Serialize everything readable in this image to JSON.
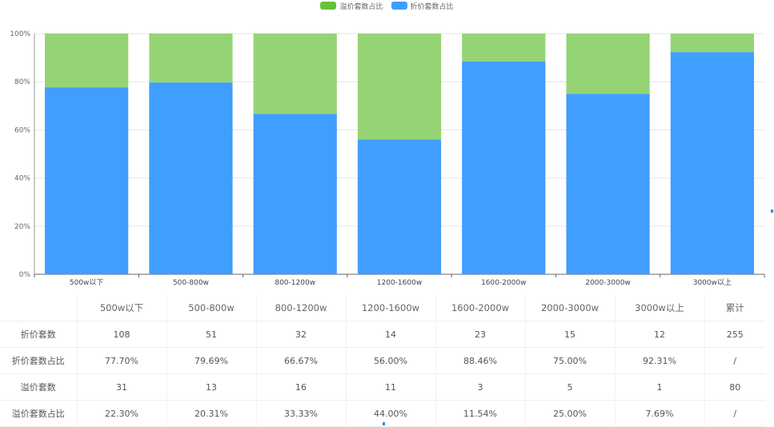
{
  "chart_data": {
    "type": "bar",
    "stacked": true,
    "percent": true,
    "categories": [
      "500w以下",
      "500-800w",
      "800-1200w",
      "1200-1600w",
      "1600-2000w",
      "2000-3000w",
      "3000w以上"
    ],
    "series": [
      {
        "name": "折价套数占比",
        "color": "#409EFF",
        "values": [
          77.7,
          79.69,
          66.67,
          56.0,
          88.46,
          75.0,
          92.31
        ]
      },
      {
        "name": "溢价套数占比",
        "color": "#95D475",
        "values": [
          22.3,
          20.31,
          33.33,
          44.0,
          11.54,
          25.0,
          7.69
        ]
      }
    ],
    "legend": [
      "溢价套数占比",
      "折价套数占比"
    ],
    "legend_colors": [
      "#67C23A",
      "#409EFF"
    ],
    "y_ticks": [
      "0%",
      "20%",
      "40%",
      "60%",
      "80%",
      "100%"
    ],
    "ylim": [
      0,
      100
    ],
    "legend_position": "top-center"
  },
  "table": {
    "headers": [
      "",
      "500w以下",
      "500-800w",
      "800-1200w",
      "1200-1600w",
      "1600-2000w",
      "2000-3000w",
      "3000w以上",
      "累计"
    ],
    "rows": [
      [
        "折价套数",
        "108",
        "51",
        "32",
        "14",
        "23",
        "15",
        "12",
        "255"
      ],
      [
        "折价套数占比",
        "77.70%",
        "79.69%",
        "66.67%",
        "56.00%",
        "88.46%",
        "75.00%",
        "92.31%",
        "/"
      ],
      [
        "溢价套数",
        "31",
        "13",
        "16",
        "11",
        "3",
        "5",
        "1",
        "80"
      ],
      [
        "溢价套数占比",
        "22.30%",
        "20.31%",
        "33.33%",
        "44.00%",
        "11.54%",
        "25.00%",
        "7.69%",
        "/"
      ]
    ]
  }
}
